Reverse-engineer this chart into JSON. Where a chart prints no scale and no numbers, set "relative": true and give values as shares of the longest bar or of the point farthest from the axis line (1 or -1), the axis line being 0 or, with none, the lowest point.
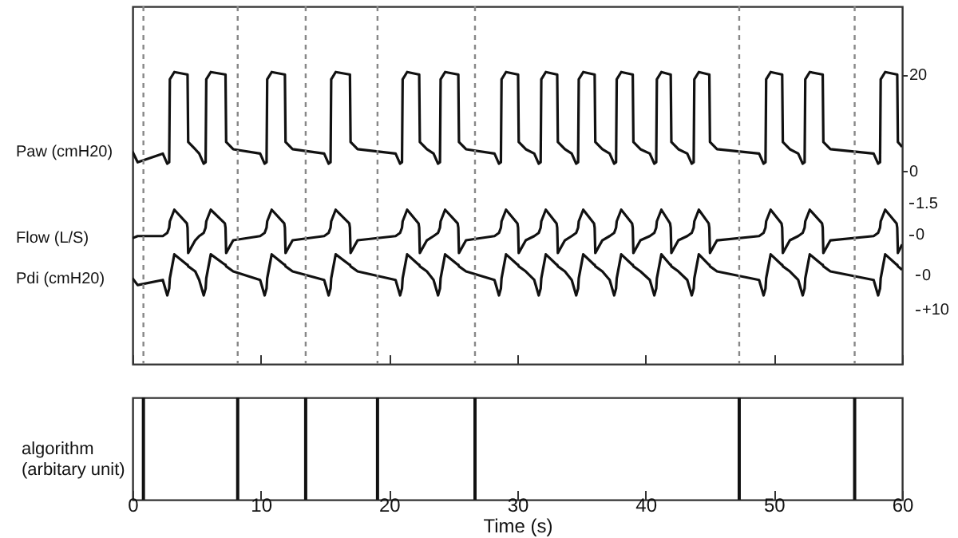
{
  "chart_data": [
    {
      "type": "line",
      "xlim": [
        0,
        60
      ],
      "xticks": [
        0,
        10,
        20,
        30,
        40,
        50,
        60
      ],
      "tick_labels": "y",
      "ylim": [
        -40,
        34.1
      ],
      "yticks": [
        0,
        20
      ],
      "y2lim": [
        -6.17,
        10.8
      ],
      "y2ticks": [
        0,
        1.5
      ],
      "y3lim": [
        26.1,
        -78.6
      ],
      "y3ticks": [
        0,
        {
          "value": 10,
          "label": "+10"
        }
      ],
      "x": [
        0,
        0.4,
        2.36,
        2.71,
        2.86,
        2.91,
        3.26,
        4.24,
        4.29,
        4.34,
        4.89,
        5.2,
        5.55,
        5.7,
        5.75,
        6.1,
        7.2,
        7.25,
        7.3,
        7.85,
        9.95,
        10.3,
        10.45,
        10.5,
        10.85,
        11.83,
        11.88,
        11.93,
        12.48,
        14.94,
        15.29,
        15.44,
        15.49,
        15.84,
        16.9,
        16.95,
        17.0,
        17.55,
        20.51,
        20.86,
        21.01,
        21.06,
        21.41,
        22.3,
        22.35,
        22.4,
        22.95,
        23.47,
        23.82,
        23.97,
        24.02,
        24.37,
        25.35,
        25.4,
        25.45,
        26.0,
        28.22,
        28.57,
        28.72,
        28.77,
        29.12,
        30.01,
        30.06,
        30.11,
        30.66,
        31.32,
        31.67,
        31.82,
        31.87,
        32.22,
        33.06,
        33.11,
        33.16,
        33.71,
        34.24,
        34.59,
        34.74,
        34.79,
        35.14,
        35.98,
        36.03,
        36.08,
        36.63,
        37.2,
        37.55,
        37.7,
        37.75,
        38.1,
        38.95,
        39.0,
        39.05,
        39.6,
        40.33,
        40.68,
        40.83,
        40.88,
        41.23,
        41.91,
        41.96,
        42.01,
        42.56,
        43.25,
        43.6,
        43.75,
        43.8,
        44.15,
        44.92,
        44.97,
        45.02,
        45.57,
        48.85,
        49.2,
        49.35,
        49.4,
        49.75,
        50.6,
        50.65,
        50.7,
        51.25,
        51.9,
        52.25,
        52.4,
        52.45,
        52.8,
        53.76,
        53.81,
        53.86,
        54.41,
        57.78,
        58.13,
        58.28,
        58.33,
        58.68,
        59.57,
        59.62,
        59.67,
        60
      ],
      "series": [
        {
          "name": "Paw (cmH20)",
          "color": "#111111",
          "axis": "y",
          "values": [
            4,
            1.8,
            3.6,
            1.5,
            1.8,
            19,
            20.5,
            20,
            20,
            6,
            4.5,
            3.6,
            1.5,
            1.8,
            19,
            20.5,
            20,
            20,
            6,
            4.5,
            3.6,
            1.5,
            1.8,
            19,
            20.5,
            20,
            20,
            6,
            4.5,
            3.6,
            1.5,
            1.8,
            19,
            20.5,
            20,
            20,
            6,
            4.5,
            3.6,
            1.5,
            1.8,
            19,
            20.5,
            20,
            20,
            6,
            4.5,
            3.6,
            1.5,
            1.8,
            19,
            20.5,
            20,
            20,
            6,
            4.5,
            3.6,
            1.5,
            1.8,
            19,
            20.5,
            20,
            20,
            6,
            4.5,
            3.6,
            1.5,
            1.8,
            19,
            20.5,
            20,
            20,
            6,
            4.5,
            3.6,
            1.5,
            1.8,
            19,
            20.5,
            20,
            20,
            6,
            4.5,
            3.6,
            1.5,
            1.8,
            19,
            20.5,
            20,
            20,
            6,
            4.5,
            3.6,
            1.5,
            1.8,
            19,
            20.5,
            20,
            20,
            6,
            4.5,
            3.6,
            1.5,
            1.8,
            19,
            20.5,
            20,
            20,
            6,
            4.5,
            3.6,
            1.5,
            1.8,
            19,
            20.5,
            20,
            20,
            6,
            4.5,
            3.6,
            1.5,
            1.8,
            19,
            20.5,
            20,
            20,
            6,
            4.5,
            3.6,
            1.5,
            1.8,
            19,
            20.5,
            20,
            20,
            6,
            5
          ]
        },
        {
          "name": "Flow (L/S)",
          "color": "#111111",
          "axis": "y2",
          "values": [
            -0.2,
            -0.1,
            -0.1,
            0.05,
            0.3,
            0.6,
            1.15,
            0.5,
            0.3,
            -0.9,
            -0.3,
            -0.1,
            0.05,
            0.3,
            0.6,
            1.15,
            0.5,
            0.3,
            -0.9,
            -0.3,
            -0.1,
            0.05,
            0.3,
            0.6,
            1.15,
            0.5,
            0.3,
            -0.9,
            -0.3,
            -0.1,
            0.05,
            0.3,
            0.6,
            1.15,
            0.5,
            0.3,
            -0.9,
            -0.3,
            -0.1,
            0.05,
            0.3,
            0.6,
            1.15,
            0.5,
            0.3,
            -0.9,
            -0.3,
            -0.1,
            0.05,
            0.3,
            0.6,
            1.15,
            0.5,
            0.3,
            -0.9,
            -0.3,
            -0.1,
            0.05,
            0.3,
            0.6,
            1.15,
            0.5,
            0.3,
            -0.9,
            -0.3,
            -0.1,
            0.05,
            0.3,
            0.6,
            1.15,
            0.5,
            0.3,
            -0.9,
            -0.3,
            -0.1,
            0.05,
            0.3,
            0.6,
            1.15,
            0.5,
            0.3,
            -0.9,
            -0.3,
            -0.1,
            0.05,
            0.3,
            0.6,
            1.15,
            0.5,
            0.3,
            -0.9,
            -0.3,
            -0.1,
            0.05,
            0.3,
            0.6,
            1.15,
            0.5,
            0.3,
            -0.9,
            -0.3,
            -0.1,
            0.05,
            0.3,
            0.6,
            1.15,
            0.5,
            0.3,
            -0.9,
            -0.3,
            -0.1,
            0.05,
            0.3,
            0.6,
            1.15,
            0.5,
            0.3,
            -0.9,
            -0.3,
            -0.1,
            0.05,
            0.3,
            0.6,
            1.15,
            0.5,
            0.3,
            -0.9,
            -0.3,
            -0.1,
            0.05,
            0.3,
            0.6,
            1.15,
            0.5,
            0.3,
            -0.9,
            -0.5
          ]
        },
        {
          "name": "Pdi (cmH20)",
          "color": "#111111",
          "axis": "y3",
          "values": [
            1,
            3,
            1.5,
            6,
            4,
            1,
            -6,
            -3,
            -3,
            -2.5,
            -1,
            1.5,
            6,
            4,
            1,
            -6,
            -3,
            -3,
            -2.5,
            -1,
            1.5,
            6,
            4,
            1,
            -6,
            -3,
            -3,
            -2.5,
            -1,
            1.5,
            6,
            4,
            1,
            -6,
            -3,
            -3,
            -2.5,
            -1,
            1.5,
            6,
            4,
            1,
            -6,
            -3,
            -3,
            -2.5,
            -1,
            1.5,
            6,
            4,
            1,
            -6,
            -3,
            -3,
            -2.5,
            -1,
            1.5,
            6,
            4,
            1,
            -6,
            -3,
            -3,
            -2.5,
            -1,
            1.5,
            6,
            4,
            1,
            -6,
            -3,
            -3,
            -2.5,
            -1,
            1.5,
            6,
            4,
            1,
            -6,
            -3,
            -3,
            -2.5,
            -1,
            1.5,
            6,
            4,
            1,
            -6,
            -3,
            -3,
            -2.5,
            -1,
            1.5,
            6,
            4,
            1,
            -6,
            -3,
            -3,
            -2.5,
            -1,
            1.5,
            6,
            4,
            1,
            -6,
            -3,
            -3,
            -2.5,
            -1,
            1.5,
            6,
            4,
            1,
            -6,
            -3,
            -3,
            -2.5,
            -1,
            1.5,
            6,
            4,
            1,
            -6,
            -3,
            -3,
            -2.5,
            -1,
            1.5,
            6,
            4,
            1,
            -6,
            -3,
            -3,
            -2.5,
            -1.5
          ]
        }
      ],
      "ref_lines": [
        {
          "axis": "x",
          "value": 0.85,
          "color": "#888888",
          "line_style": "dashed"
        },
        {
          "axis": "x",
          "value": 8.2,
          "color": "#888888",
          "line_style": "dashed"
        },
        {
          "axis": "x",
          "value": 13.5,
          "color": "#888888",
          "line_style": "dashed"
        },
        {
          "axis": "x",
          "value": 19.1,
          "color": "#888888",
          "line_style": "dashed"
        },
        {
          "axis": "x",
          "value": 26.7,
          "color": "#888888",
          "line_style": "dashed"
        },
        {
          "axis": "x",
          "value": 47.3,
          "color": "#888888",
          "line_style": "dashed"
        },
        {
          "axis": "x",
          "value": 56.3,
          "color": "#888888",
          "line_style": "dashed"
        }
      ]
    },
    {
      "type": "bar",
      "relative": true,
      "xlim": [
        0,
        60
      ],
      "xticks": [
        0,
        10,
        20,
        30,
        40,
        50,
        60
      ],
      "xlabel": "Time (s)",
      "ylabel": "algorithm\n(arbitary unit)",
      "color": "#111111",
      "x": [
        0.85,
        8.2,
        13.5,
        19.1,
        26.7,
        47.3,
        56.3
      ],
      "values": [
        1,
        1,
        1,
        1,
        1,
        1,
        1
      ]
    }
  ]
}
